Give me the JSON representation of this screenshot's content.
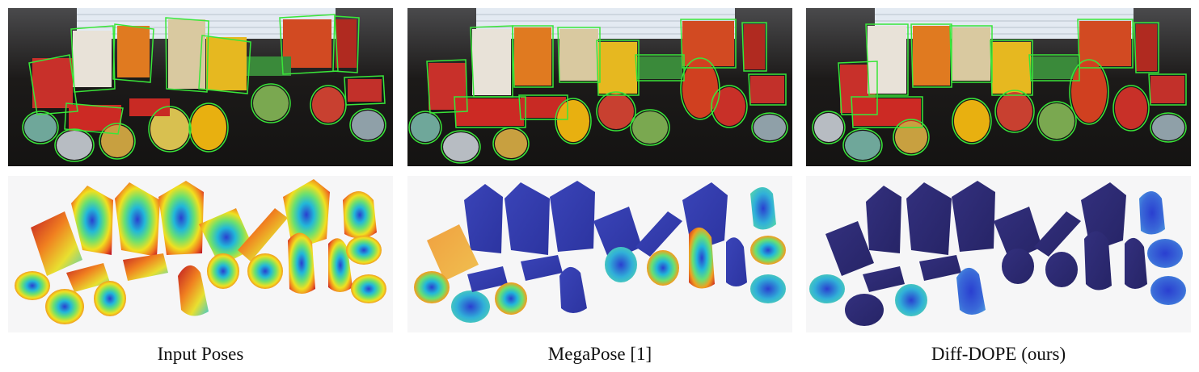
{
  "captions": [
    "Input Poses",
    "MegaPose [1]",
    "Diff-DOPE (ours)"
  ],
  "colors": {
    "table": "#23201e",
    "window": "#dde6ef",
    "contour": "#39e639",
    "render_bg": "#f6f6f7",
    "dark_blue": "#2b2a7a",
    "error_hot": "#d0202a",
    "error_cold": "#2a3fd0"
  }
}
